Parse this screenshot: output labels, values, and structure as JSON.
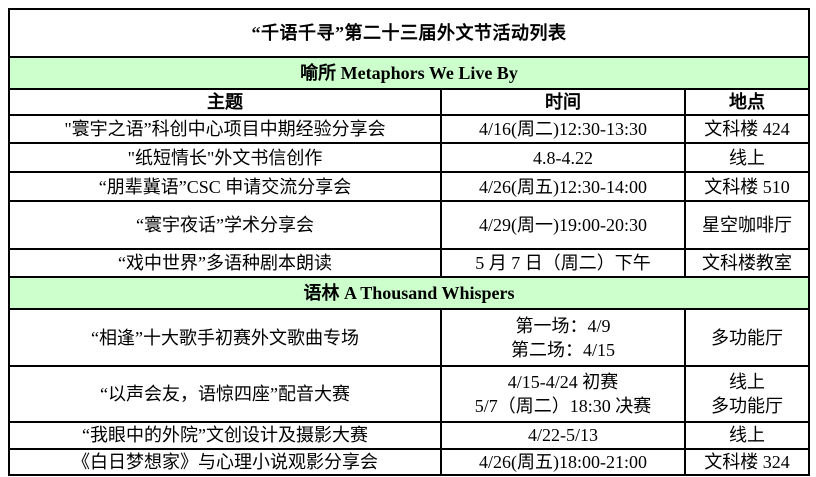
{
  "title": "“千语千寻”第二十三届外文节活动列表",
  "columns": [
    "主题",
    "时间",
    "地点"
  ],
  "sections": [
    {
      "header": "喻所  Metaphors We Live By",
      "rows": [
        {
          "theme": "\"寰宇之语”科创中心项目中期经验分享会",
          "time": "4/16(周二)12:30-13:30",
          "venue": "文科楼 424"
        },
        {
          "theme": "\"纸短情长\"外文书信创作",
          "time": "4.8-4.22",
          "venue": "线上"
        },
        {
          "theme": "“朋辈冀语”CSC 申请交流分享会",
          "time": "4/26(周五)12:30-14:00",
          "venue": "文科楼 510"
        },
        {
          "theme": "“寰宇夜话”学术分享会",
          "time": "4/29(周一)19:00-20:30",
          "venue": "星空咖啡厅"
        },
        {
          "theme": "“戏中世界”多语种剧本朗读",
          "time": "5 月 7 日（周二）下午",
          "venue": "文科楼教室"
        }
      ]
    },
    {
      "header": "语林  A Thousand Whispers",
      "rows": [
        {
          "theme": "“相逢”十大歌手初赛外文歌曲专场",
          "time": "第一场：4/9\n第二场：4/15",
          "venue": "多功能厅"
        },
        {
          "theme": "“以声会友，语惊四座”配音大赛",
          "time": "4/15-4/24 初赛\n5/7（周二）18:30 决赛",
          "venue": "线上\n多功能厅"
        },
        {
          "theme": "“我眼中的外院”文创设计及摄影大赛",
          "time": "4/22-5/13",
          "venue": "线上"
        },
        {
          "theme": "《白日梦想家》与心理小说观影分享会",
          "time": "4/26(周五)18:00-21:00",
          "venue": "文科楼 324"
        }
      ]
    }
  ],
  "colors": {
    "section_header_bg": "#ccffcc",
    "border": "#000000",
    "text": "#000000",
    "background": "#ffffff"
  }
}
